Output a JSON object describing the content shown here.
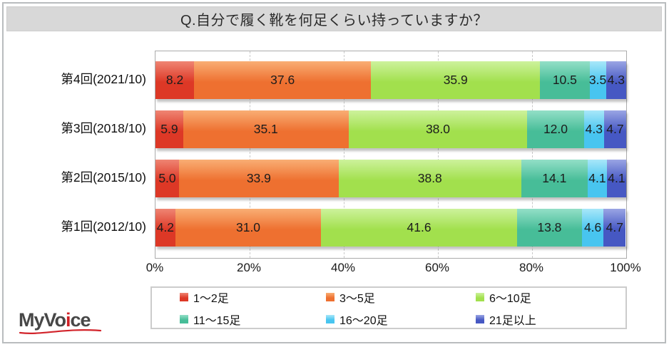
{
  "title": "Q.自分で履く靴を何足くらい持っていますか？",
  "logo": {
    "prefix": "MyVo",
    "i": "i",
    "suffix": "ce",
    "swoosh_color": "#d2232a"
  },
  "chart_data": {
    "type": "bar",
    "stacked": true,
    "orientation": "horizontal",
    "title": "Q.自分で履く靴を何足くらい持っていますか？",
    "categories": [
      "第4回(2021/10)",
      "第3回(2018/10)",
      "第2回(2015/10)",
      "第1回(2012/10)"
    ],
    "series": [
      {
        "name": "1～2足",
        "color": "#dd3826",
        "color_light": "#ef8573",
        "values": [
          8.2,
          5.9,
          5.0,
          4.2
        ]
      },
      {
        "name": "3～5足",
        "color": "#ee7030",
        "color_light": "#f9ae74",
        "values": [
          37.6,
          35.1,
          33.9,
          31.0
        ]
      },
      {
        "name": "6～10足",
        "color": "#a2e04d",
        "color_light": "#cdf29c",
        "values": [
          35.9,
          38.0,
          38.8,
          41.6
        ]
      },
      {
        "name": "11～15足",
        "color": "#47bd98",
        "color_light": "#93dfc7",
        "values": [
          10.5,
          12.0,
          14.1,
          13.8
        ]
      },
      {
        "name": "16～20足",
        "color": "#48c5f0",
        "color_light": "#a8e7f9",
        "values": [
          3.5,
          4.3,
          4.1,
          4.6
        ]
      },
      {
        "name": "21足以上",
        "color": "#4658c3",
        "color_light": "#9aa5e4",
        "values": [
          4.3,
          4.7,
          4.1,
          4.7
        ]
      }
    ],
    "x_ticks": [
      "0%",
      "20%",
      "40%",
      "60%",
      "80%",
      "100%"
    ],
    "xlim": [
      0,
      100
    ],
    "value_labels": true,
    "grid": "dashed-vertical",
    "legend_position": "bottom"
  }
}
